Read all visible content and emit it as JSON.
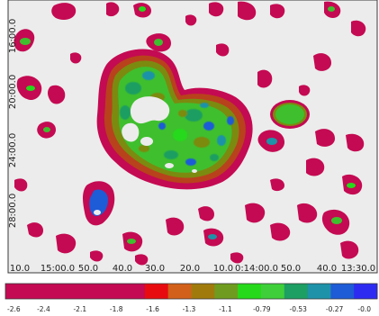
{
  "image": {
    "description_kind": "astronomical false-colour intensity map",
    "background_color": "#ececec"
  },
  "axes": {
    "y_ticks": [
      "16:00.0",
      "20:00.0",
      "24:00.0",
      "28:00.0"
    ],
    "x_ticks": [
      "10.0",
      "15:00.0",
      "50.0",
      "40.0",
      "30.0",
      "20.0",
      "10.0",
      "0:14:00.0",
      "50.0",
      "40.0",
      "13:30.0"
    ]
  },
  "colorbar": {
    "tick_labels": [
      "-2.6",
      "-2.4",
      "-2.1",
      "-1.8",
      "-1.6",
      "-1.3",
      "-1.1",
      "-0.79",
      "-0.53",
      "-0.27",
      "-0.0"
    ],
    "colors": [
      "#c40a52",
      "#c40a52",
      "#c40a52",
      "#c40a52",
      "#c40a52",
      "#c40a52",
      "#e80c10",
      "#d2601a",
      "#a07b0c",
      "#6f9c1e",
      "#26d91a",
      "#3fcf3a",
      "#1d9e62",
      "#1e92a8",
      "#1e5bd6",
      "#2d2bf2"
    ]
  }
}
